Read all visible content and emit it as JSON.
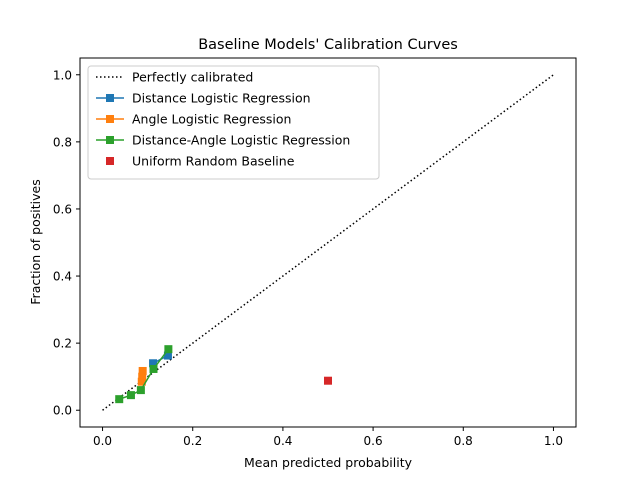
{
  "chart_data": {
    "type": "line",
    "title": "Baseline Models' Calibration Curves",
    "xlabel": "Mean predicted probability",
    "ylabel": "Fraction of positives",
    "xlim": [
      -0.05,
      1.05
    ],
    "ylim": [
      -0.05,
      1.05
    ],
    "xticks": [
      0.0,
      0.2,
      0.4,
      0.6,
      0.8,
      1.0
    ],
    "yticks": [
      0.0,
      0.2,
      0.4,
      0.6,
      0.8,
      1.0
    ],
    "xtick_labels": [
      "0.0",
      "0.2",
      "0.4",
      "0.6",
      "0.8",
      "1.0"
    ],
    "ytick_labels": [
      "0.0",
      "0.2",
      "0.4",
      "0.6",
      "0.8",
      "1.0"
    ],
    "grid": false,
    "legend_position": "upper-left",
    "series": [
      {
        "name": "Perfectly calibrated",
        "color": "#000000",
        "style": "dotted",
        "marker": "none",
        "x": [
          0.0,
          1.0
        ],
        "y": [
          0.0,
          1.0
        ]
      },
      {
        "name": "Distance Logistic Regression",
        "color": "#1f77b4",
        "style": "solid",
        "marker": "square",
        "x": [
          0.112,
          0.145
        ],
        "y": [
          0.14,
          0.163
        ]
      },
      {
        "name": "Angle Logistic Regression",
        "color": "#ff7f0e",
        "style": "solid",
        "marker": "square",
        "x": [
          0.087,
          0.088,
          0.089
        ],
        "y": [
          0.085,
          0.1,
          0.117
        ]
      },
      {
        "name": "Distance-Angle Logistic Regression",
        "color": "#2ca02c",
        "style": "solid",
        "marker": "square",
        "x": [
          0.037,
          0.063,
          0.085,
          0.113,
          0.146
        ],
        "y": [
          0.033,
          0.045,
          0.06,
          0.123,
          0.182
        ]
      },
      {
        "name": "Uniform Random Baseline",
        "color": "#d62728",
        "style": "none",
        "marker": "square",
        "x": [
          0.5
        ],
        "y": [
          0.088
        ]
      }
    ]
  }
}
